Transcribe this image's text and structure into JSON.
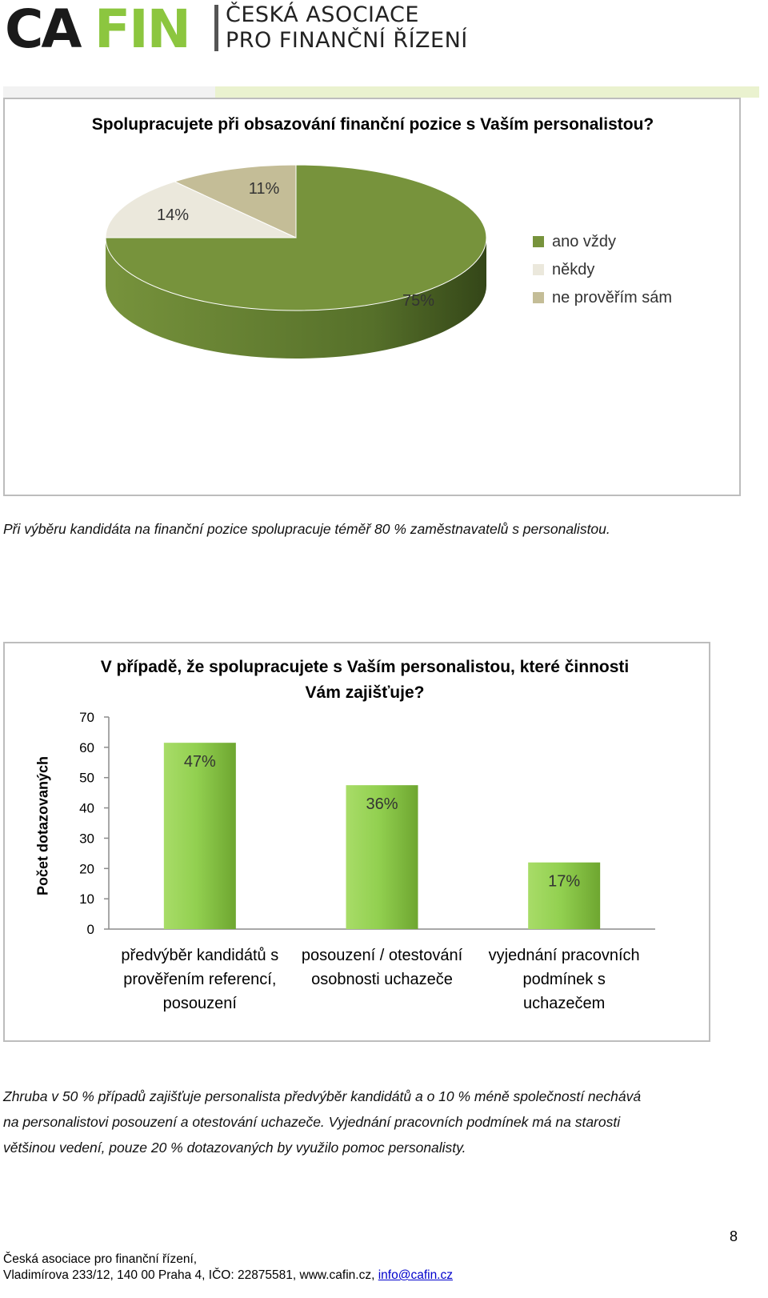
{
  "header": {
    "logo_ca": "CA",
    "logo_fin": "FIN",
    "org_line1": "ČESKÁ ASOCIACE",
    "org_line2": "PRO FINANČNÍ ŘÍZENÍ",
    "brand_colors": {
      "dark": "#1a1a1a",
      "green": "#8cc63f"
    }
  },
  "chart1": {
    "chart_data": {
      "type": "pie",
      "title": "Spolupracujete při obsazování finanční pozice s Vaším personalistou?",
      "slices": [
        {
          "name": "ano vždy",
          "value": 75,
          "label": "75%",
          "color": "#77933c"
        },
        {
          "name": "někdy",
          "value": 14,
          "label": "14%",
          "color": "#ebe8dc"
        },
        {
          "name": "ne prověřím sám",
          "value": 11,
          "label": "11%",
          "color": "#c4bd97"
        }
      ],
      "legend_position": "right"
    }
  },
  "paragraph1": "Při výběru kandidáta na finanční pozice spolupracuje téměř 80 % zaměstnavatelů s personalistou.",
  "chart2": {
    "chart_data": {
      "type": "bar",
      "title_line1": "V případě, že spolupracujete s Vaším personalistou, které činnosti",
      "title_line2": "Vám zajišťuje?",
      "ylabel": "Počet dotazovaných",
      "ylim": [
        0,
        70
      ],
      "yticks": [
        "0",
        "10",
        "20",
        "30",
        "40",
        "50",
        "60",
        "70"
      ],
      "categories": [
        {
          "lines": [
            "předvýběr kandidátů s",
            "prověřením referencí,",
            "posouzení"
          ]
        },
        {
          "lines": [
            "posouzení / otestování",
            "osobnosti uchazeče"
          ]
        },
        {
          "lines": [
            "vyjednání pracovních",
            "podmínek s",
            "uchazečem"
          ]
        }
      ],
      "values": [
        61.5,
        47.5,
        22
      ],
      "data_labels": [
        "47%",
        "36%",
        "17%"
      ],
      "grid": false,
      "bar_color": "#92d050"
    }
  },
  "paragraph2": {
    "line1": "Zhruba v 50 % případů zajišťuje personalista předvýběr kandidátů a o 10 % méně společností nechává",
    "line2": "na personalistovi posouzení a otestování uchazeče. Vyjednání pracovních podmínek má na starosti",
    "line3": "většinou vedení, pouze 20 % dotazovaných by využilo pomoc personalisty."
  },
  "footer": {
    "page_number": "8",
    "line1": "Česká asociace pro finanční řízení,",
    "line2_prefix": "Vladimírova 233/12, 140 00 Praha 4, IČO: 22875581, www.cafin.cz, ",
    "email": "info@cafin.cz"
  }
}
